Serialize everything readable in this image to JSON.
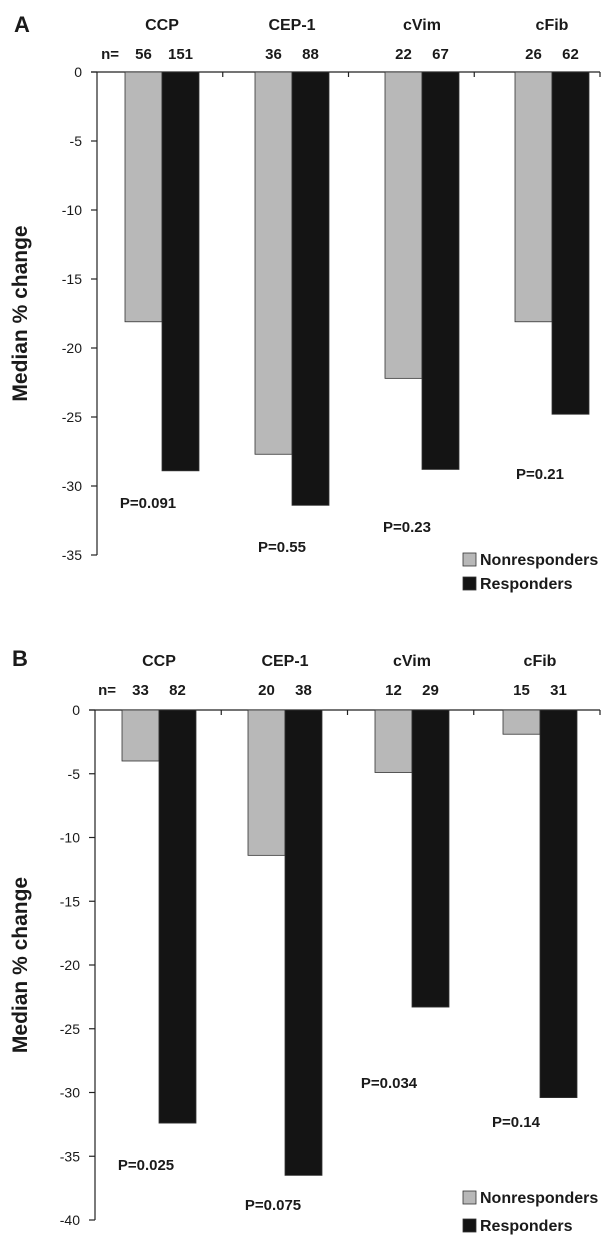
{
  "chart_data": [
    {
      "panel": "A",
      "type": "bar",
      "ylabel": "Median % change",
      "ylim": [
        -35,
        0
      ],
      "yticks": [
        "0",
        "-5",
        "-10",
        "-15",
        "-20",
        "-25",
        "-30",
        "-35"
      ],
      "n_label": "n=",
      "categories": [
        "CCP",
        "CEP-1",
        "cVim",
        "cFib"
      ],
      "n": [
        [
          "56",
          "151"
        ],
        [
          "36",
          "88"
        ],
        [
          "22",
          "67"
        ],
        [
          "26",
          "62"
        ]
      ],
      "series": [
        {
          "name": "Nonresponders",
          "color": "#b8b8b8",
          "values": [
            -18.1,
            -27.7,
            -22.2,
            -18.1
          ]
        },
        {
          "name": "Responders",
          "color": "#141414",
          "values": [
            -28.9,
            -31.4,
            -28.8,
            -24.8
          ]
        }
      ],
      "p_values": [
        "P=0.091",
        "P=0.55",
        "P=0.23",
        "P=0.21"
      ]
    },
    {
      "panel": "B",
      "type": "bar",
      "ylabel": "Median % change",
      "ylim": [
        -40,
        0
      ],
      "yticks": [
        "0",
        "-5",
        "-10",
        "-15",
        "-20",
        "-25",
        "-30",
        "-35",
        "-40"
      ],
      "n_label": "n=",
      "categories": [
        "CCP",
        "CEP-1",
        "cVim",
        "cFib"
      ],
      "n": [
        [
          "33",
          "82"
        ],
        [
          "20",
          "38"
        ],
        [
          "12",
          "29"
        ],
        [
          "15",
          "31"
        ]
      ],
      "series": [
        {
          "name": "Nonresponders",
          "color": "#b8b8b8",
          "values": [
            -4.0,
            -11.4,
            -4.9,
            -1.9
          ]
        },
        {
          "name": "Responders",
          "color": "#141414",
          "values": [
            -32.4,
            -36.5,
            -23.3,
            -30.4
          ]
        }
      ],
      "p_values": [
        "P=0.025",
        "P=0.075",
        "P=0.034",
        "P=0.14"
      ]
    }
  ]
}
